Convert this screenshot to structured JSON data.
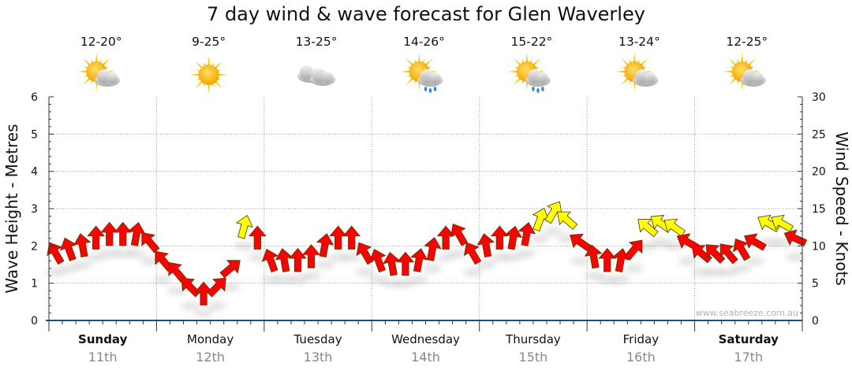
{
  "chart_data": {
    "type": "scatter",
    "title": "7 day wind & wave forecast for Glen Waverley",
    "ylabel_left": "Wave Height - Metres",
    "ylabel_right": "Wind Speed - Knots",
    "ylim_left": [
      0,
      6
    ],
    "ylim_right": [
      0,
      30
    ],
    "left_ticks": [
      "0",
      "1",
      "2",
      "3",
      "4",
      "5",
      "6"
    ],
    "right_ticks": [
      "0",
      "5",
      "10",
      "15",
      "20",
      "25",
      "30"
    ],
    "grid": true,
    "days": [
      {
        "name": "Sunday",
        "date": "11th",
        "bold": true,
        "temp": "12-20°",
        "icon": "sun-cloud"
      },
      {
        "name": "Monday",
        "date": "12th",
        "bold": false,
        "temp": "9-25°",
        "icon": "sun"
      },
      {
        "name": "Tuesday",
        "date": "13th",
        "bold": false,
        "temp": "13-25°",
        "icon": "cloud"
      },
      {
        "name": "Wednesday",
        "date": "14th",
        "bold": false,
        "temp": "14-26°",
        "icon": "sun-cloud-rain"
      },
      {
        "name": "Thursday",
        "date": "15th",
        "bold": false,
        "temp": "15-22°",
        "icon": "sun-cloud-rain"
      },
      {
        "name": "Friday",
        "date": "16th",
        "bold": false,
        "temp": "13-24°",
        "icon": "sun-cloud"
      },
      {
        "name": "Saturday",
        "date": "17th",
        "bold": true,
        "temp": "12-25°",
        "icon": "sun-cloud"
      }
    ],
    "wind_interval_hours": 3,
    "wind_speed_knots": [
      9,
      9.5,
      10,
      11,
      11.5,
      11.5,
      11.5,
      10.5,
      8,
      6.5,
      4.5,
      3.5,
      4.5,
      7,
      12.5,
      11,
      8,
      8,
      8,
      8.5,
      10,
      11,
      11,
      9,
      8,
      7.5,
      7.5,
      8,
      9.5,
      11,
      11.5,
      9,
      10,
      11,
      11,
      11.5,
      13.5,
      14.5,
      13.5,
      10.5,
      8.5,
      8,
      8,
      9.5,
      12.5,
      13,
      12.5,
      10.5,
      9,
      9,
      9,
      9.5,
      10.5,
      13,
      13,
      11
    ],
    "wind_heading_deg": [
      -30,
      -20,
      -10,
      0,
      0,
      0,
      10,
      -40,
      -40,
      -40,
      -45,
      0,
      45,
      50,
      15,
      0,
      -20,
      -10,
      0,
      0,
      10,
      0,
      0,
      -30,
      -20,
      -10,
      0,
      10,
      10,
      0,
      -30,
      -30,
      -10,
      0,
      10,
      10,
      20,
      30,
      -50,
      -55,
      -10,
      0,
      10,
      40,
      -50,
      -55,
      -55,
      -60,
      -50,
      -45,
      -40,
      -30,
      -60,
      -60,
      -60,
      -65
    ],
    "color_threshold_knots": 12,
    "colors": {
      "low": "#ff0000",
      "high": "#ffff00",
      "axis": "#1f4e79"
    },
    "watermark": "www.seabreeze.com.au"
  }
}
